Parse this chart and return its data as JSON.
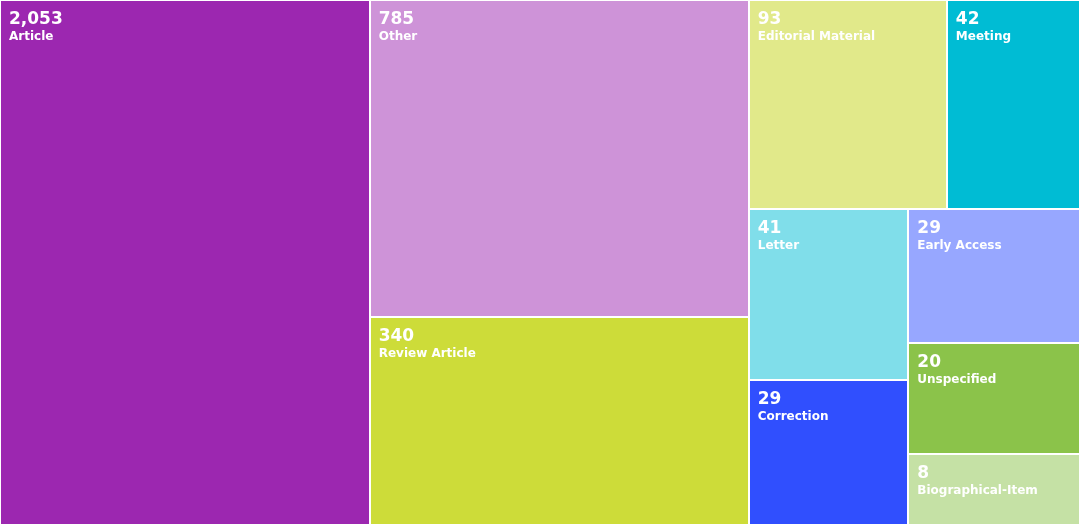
{
  "chart_data": {
    "type": "other",
    "categories": [
      "Article",
      "Other",
      "Review Article",
      "Editorial Material",
      "Meeting",
      "Letter",
      "Correction",
      "Early Access",
      "Unspecified",
      "Biographical-Item"
    ],
    "values": [
      2053,
      785,
      340,
      93,
      42,
      41,
      29,
      29,
      20,
      8
    ],
    "value_labels": [
      "2,053",
      "785",
      "340",
      "93",
      "42",
      "41",
      "29",
      "29",
      "20",
      "8"
    ],
    "colors": [
      "#9c27b0",
      "#ce93d8",
      "#cddc39",
      "#e1e98a",
      "#00bcd4",
      "#80deea",
      "#304ffe",
      "#97a7ff",
      "#8bc34a",
      "#c5e1a5"
    ]
  }
}
